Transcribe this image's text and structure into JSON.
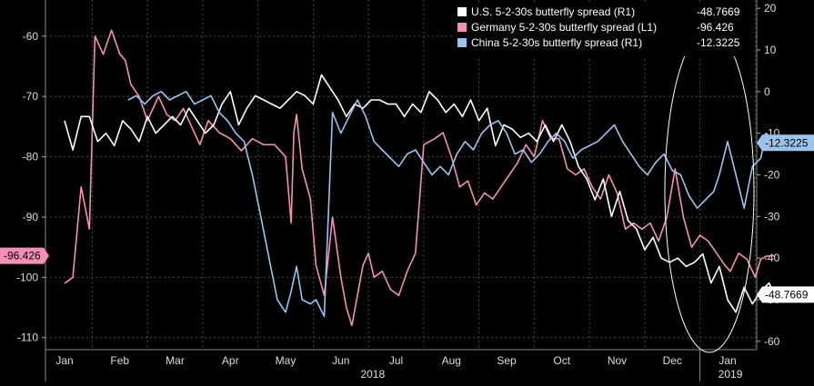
{
  "chart_data": {
    "type": "line",
    "title": "",
    "xlabel": "",
    "background": "#000000",
    "x_labels": [
      "Jan",
      "Feb",
      "Mar",
      "Apr",
      "May",
      "Jun",
      "Jul",
      "Aug",
      "Sep",
      "Oct",
      "Nov",
      "Dec",
      "Jan"
    ],
    "x_year_labels": [
      "2018",
      "2019"
    ],
    "left_axis": {
      "ylim": [
        -112,
        -54
      ],
      "ticks": [
        -60,
        -70,
        -80,
        -90,
        -100,
        -110
      ]
    },
    "right_axis": {
      "ylim": [
        -62,
        22
      ],
      "ticks": [
        20,
        10,
        0,
        -10,
        -20,
        -30,
        -40,
        -50,
        -60
      ]
    },
    "legend": {
      "position": "top-right",
      "entries": [
        {
          "label": "U.S. 5-2-30s butterfly spread (R1)",
          "value": "-48.7669",
          "color": "#ffffff"
        },
        {
          "label": "Germany 5-2-30s butterfly spread (L1)",
          "value": "-96.426",
          "color": "#f48fb8"
        },
        {
          "label": "China 5-2-30s butterfly spread  (R1)",
          "value": "-12.3225",
          "color": "#9cc3ee"
        }
      ]
    },
    "last_value_tags": [
      {
        "text": "-96.426",
        "axis": "left",
        "value": -96.426,
        "color": "#f48fb8"
      },
      {
        "text": "-12.3225",
        "axis": "right",
        "value": -12.3225,
        "color": "#9cc3ee"
      },
      {
        "text": "-48.7669",
        "axis": "right",
        "value": -48.7669,
        "color": "#ffffff"
      }
    ],
    "annotation": "ellipse-highlight-recent-period",
    "series": [
      {
        "name": "Germany 5-2-30s butterfly spread (L1)",
        "axis": "left",
        "color": "#f48fb8",
        "x": [
          0.0,
          0.15,
          0.3,
          0.45,
          0.55,
          0.7,
          0.85,
          1.0,
          1.1,
          1.2,
          1.35,
          1.5,
          1.6,
          1.7,
          1.85,
          2.0,
          2.15,
          2.3,
          2.45,
          2.6,
          2.8,
          3.0,
          3.2,
          3.4,
          3.6,
          3.8,
          4.0,
          4.1,
          4.15,
          4.2,
          4.3,
          4.45,
          4.55,
          4.7,
          4.85,
          5.0,
          5.1,
          5.2,
          5.3,
          5.4,
          5.5,
          5.6,
          5.75,
          5.9,
          6.05,
          6.2,
          6.35,
          6.5,
          6.7,
          6.85,
          7.0,
          7.15,
          7.3,
          7.45,
          7.6,
          7.75,
          7.9,
          8.05,
          8.2,
          8.35,
          8.5,
          8.65,
          8.8,
          8.95,
          9.1,
          9.25,
          9.4,
          9.55,
          9.7,
          9.85,
          10.0,
          10.15,
          10.3,
          10.45,
          10.6,
          10.75,
          10.9,
          11.05,
          11.2,
          11.35,
          11.5,
          11.65,
          11.8,
          11.95,
          12.05,
          12.2,
          12.35,
          12.5,
          12.6,
          12.7,
          12.85
        ],
        "y": [
          -101,
          -100,
          -85,
          -92,
          -60,
          -63,
          -59,
          -63,
          -64,
          -68,
          -70,
          -74,
          -72,
          -70,
          -73,
          -74,
          -72,
          -75,
          -78,
          -74,
          -76,
          -77,
          -79,
          -77,
          -78,
          -78,
          -80,
          -91,
          -76,
          -73,
          -82,
          -87,
          -98,
          -103,
          -90,
          -100,
          -105,
          -108,
          -103,
          -98,
          -96,
          -100,
          -99,
          -102,
          -103,
          -99,
          -96,
          -78,
          -77,
          -76,
          -80,
          -85,
          -84,
          -88,
          -86,
          -87,
          -85,
          -83,
          -81,
          -78,
          -80,
          -74,
          -77,
          -77,
          -82,
          -83,
          -82,
          -85,
          -87,
          -83,
          -86,
          -92,
          -91,
          -92,
          -91,
          -94,
          -90,
          -82,
          -90,
          -95,
          -93,
          -94,
          -96,
          -98,
          -99,
          -96,
          -97,
          -100,
          -97,
          -96.5,
          -96.4
        ]
      },
      {
        "name": "U.S. 5-2-30s butterfly spread (R1)",
        "axis": "right",
        "color": "#ffffff",
        "x": [
          0.0,
          0.15,
          0.3,
          0.45,
          0.6,
          0.75,
          0.9,
          1.05,
          1.2,
          1.35,
          1.5,
          1.65,
          1.8,
          1.95,
          2.1,
          2.25,
          2.4,
          2.55,
          2.7,
          2.85,
          3.0,
          3.15,
          3.3,
          3.45,
          3.6,
          3.75,
          3.9,
          4.05,
          4.2,
          4.35,
          4.5,
          4.65,
          4.8,
          4.95,
          5.1,
          5.25,
          5.4,
          5.55,
          5.7,
          5.85,
          6.0,
          6.15,
          6.3,
          6.45,
          6.6,
          6.75,
          6.9,
          7.05,
          7.2,
          7.35,
          7.5,
          7.65,
          7.8,
          7.95,
          8.1,
          8.25,
          8.4,
          8.55,
          8.7,
          8.85,
          9.0,
          9.15,
          9.3,
          9.45,
          9.6,
          9.75,
          9.9,
          10.05,
          10.2,
          10.35,
          10.5,
          10.65,
          10.8,
          10.95,
          11.1,
          11.25,
          11.4,
          11.55,
          11.7,
          11.85,
          12.0,
          12.15,
          12.3,
          12.45,
          12.6,
          12.75,
          12.85
        ],
        "y": [
          -7,
          -14,
          -6,
          -6,
          -12,
          -10,
          -13,
          -7,
          -9,
          -12,
          -6,
          -10,
          -8,
          -6,
          -8,
          -4,
          -7,
          -10,
          -8,
          -3,
          0,
          -8,
          -4,
          -1,
          -2,
          -3,
          -4,
          -2,
          0,
          -1,
          -3,
          4,
          1,
          -2,
          -6,
          -3,
          -4,
          -2,
          -2,
          -3,
          -3,
          -6,
          -3,
          -5,
          0,
          -2,
          -5,
          -3,
          -6,
          -2,
          -7,
          -4,
          -13,
          -8,
          -9,
          -11,
          -10,
          -12,
          -8,
          -12,
          -8,
          -12,
          -18,
          -21,
          -26,
          -21,
          -30,
          -24,
          -31,
          -33,
          -38,
          -35,
          -40,
          -41,
          -40,
          -42,
          -41,
          -39,
          -46,
          -42,
          -50,
          -53,
          -47,
          -51,
          -48,
          -46,
          -48.8
        ]
      },
      {
        "name": "China 5-2-30s butterfly spread  (R1)",
        "axis": "right",
        "color": "#9cc3ee",
        "x": [
          1.15,
          1.3,
          1.45,
          1.6,
          1.75,
          1.9,
          2.05,
          2.2,
          2.35,
          2.5,
          2.65,
          2.8,
          2.95,
          3.1,
          3.25,
          3.4,
          3.55,
          3.7,
          3.85,
          4.0,
          4.1,
          4.2,
          4.3,
          4.45,
          4.55,
          4.7,
          4.85,
          5.0,
          5.15,
          5.3,
          5.45,
          5.6,
          5.75,
          5.9,
          6.05,
          6.2,
          6.35,
          6.5,
          6.65,
          6.8,
          6.95,
          7.1,
          7.25,
          7.4,
          7.55,
          7.7,
          7.85,
          8.0,
          8.15,
          8.3,
          8.45,
          8.6,
          8.75,
          8.9,
          9.05,
          9.2,
          9.35,
          9.5,
          9.65,
          9.8,
          9.95,
          10.1,
          10.25,
          10.4,
          10.55,
          10.7,
          10.85,
          11.0,
          11.15,
          11.3,
          11.45,
          11.6,
          11.75,
          11.85,
          12.0,
          12.15,
          12.3,
          12.45,
          12.6,
          12.7,
          12.85
        ],
        "y": [
          -2,
          -1,
          -3,
          -1,
          0,
          -2,
          -1,
          0,
          -3,
          -2,
          -1,
          -5,
          -7,
          -10,
          -12,
          -20,
          -30,
          -40,
          -50,
          -53,
          -48,
          -42,
          -50,
          -51,
          -50,
          -54,
          -5,
          -10,
          -6,
          -2,
          -6,
          -12,
          -14,
          -16,
          -18,
          -15,
          -14,
          -17,
          -20,
          -18,
          -20,
          -15,
          -12,
          -14,
          -10,
          -8,
          -7,
          -10,
          -15,
          -14,
          -17,
          -15,
          -12,
          -10,
          -12,
          -16,
          -14,
          -13,
          -12,
          -10,
          -8,
          -12,
          -15,
          -18,
          -20,
          -17,
          -15,
          -19,
          -20,
          -25,
          -28,
          -26,
          -24,
          -20,
          -12,
          -20,
          -28,
          -18,
          -16,
          -10,
          -12.3
        ]
      }
    ]
  }
}
